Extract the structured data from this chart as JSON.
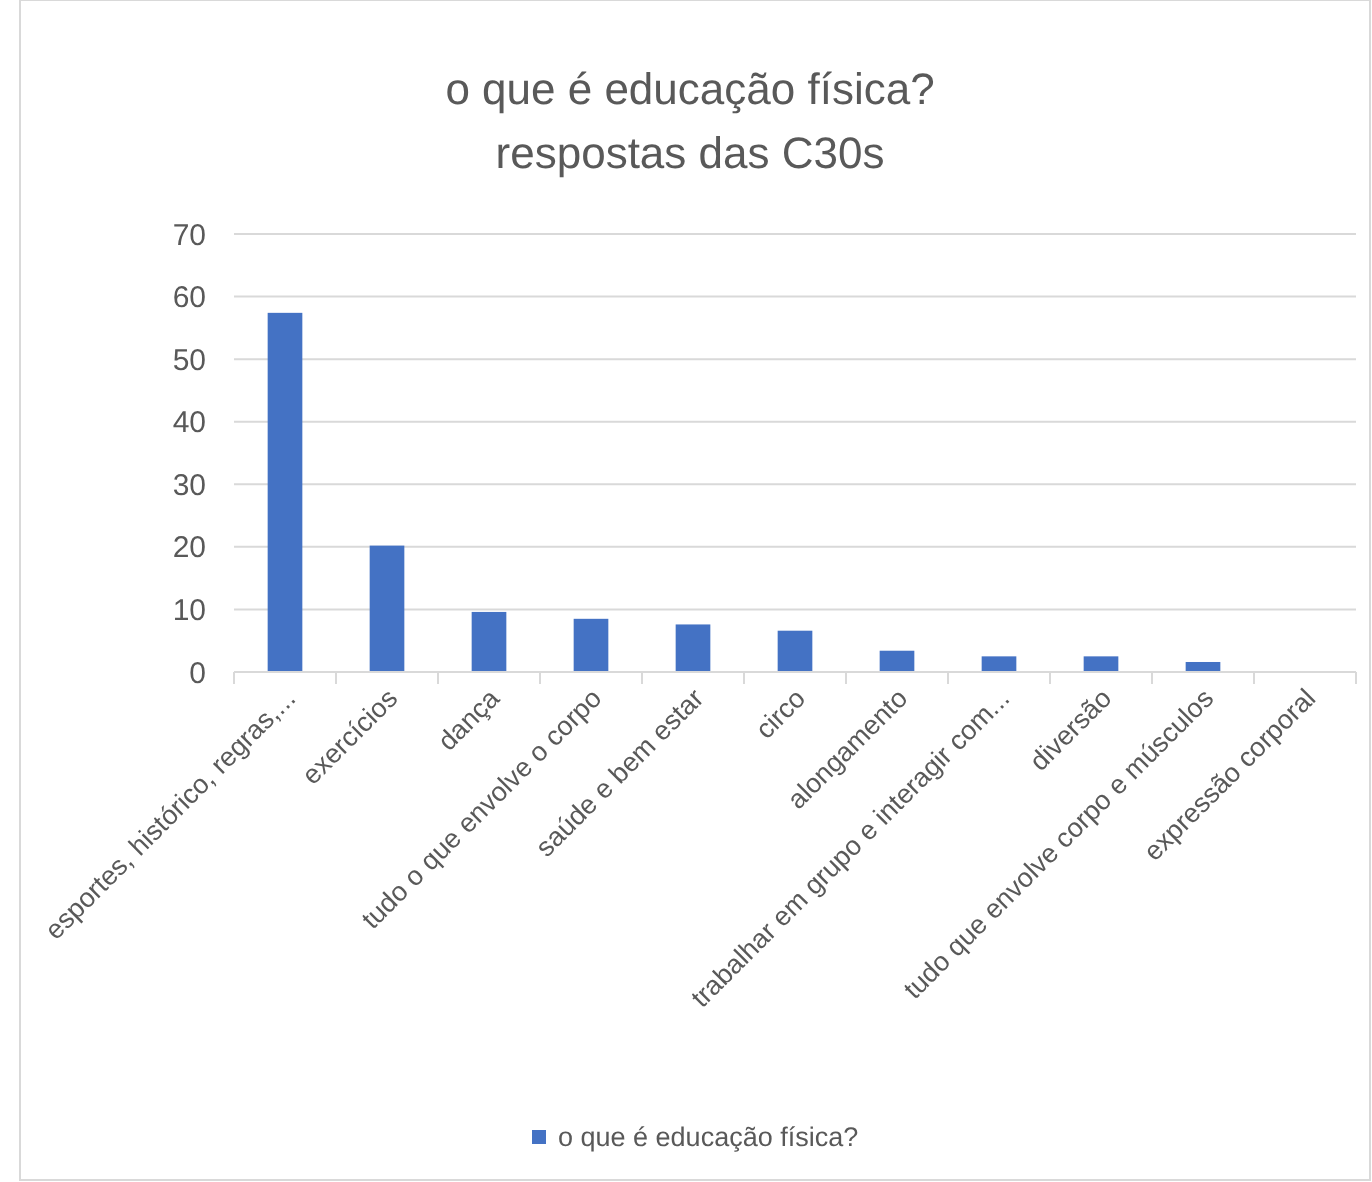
{
  "chart_data": {
    "type": "bar",
    "title": "o que é educação física?\nrespostas das C30s",
    "categories": [
      "esportes, histórico,  regras,...",
      "exercícios",
      "dança",
      "tudo o que envolve o corpo",
      "saúde e bem estar",
      "circo",
      "alongamento",
      "trabalhar em grupo e interagir com...",
      "diversão",
      "tudo que envolve corpo e músculos",
      "expressão corporal"
    ],
    "series": [
      {
        "name": "o que é educação física?",
        "color": "#4472c4",
        "values": [
          57.4,
          20.2,
          9.6,
          8.5,
          7.6,
          6.6,
          3.4,
          2.5,
          2.5,
          1.6,
          0
        ]
      }
    ],
    "ylim": [
      0,
      70
    ],
    "yticks": [
      0,
      10,
      20,
      30,
      40,
      50,
      60,
      70
    ],
    "grid": "y",
    "legend": "bottom"
  }
}
